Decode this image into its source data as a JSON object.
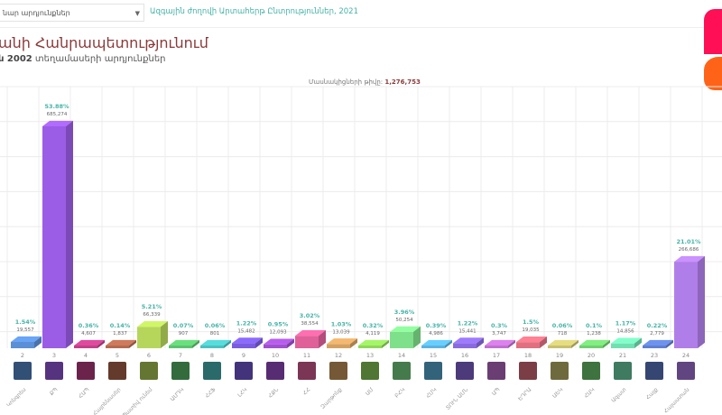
{
  "header": {
    "select_value": "նար արդյունքներ",
    "election_link": "Ազգային ժողովի Արտահերթ Ընտրություններ, 2021"
  },
  "title": "անի Հանրապետությունում",
  "subtitle_bold": "ն 2002",
  "subtitle_rest": " տեղամասերի արդյունքներ",
  "participants_label": "Մասնակիցների թիվը:",
  "participants_value": "1,276,753",
  "chart_data": {
    "type": "bar",
    "ylabel": "",
    "xlabel": "",
    "ylim": [
      0,
      60
    ],
    "grid": true,
    "categories": [
      "2",
      "3",
      "4",
      "5",
      "6",
      "7",
      "8",
      "9",
      "10",
      "11",
      "12",
      "13",
      "14",
      "15",
      "16",
      "17",
      "18",
      "19",
      "20",
      "21",
      "23",
      "24"
    ],
    "party_names": [
      "Կոնգրես",
      "ՔՊ",
      "ՀԱՊ",
      "Հայրենասեր",
      "Պատիվ ունեմ",
      "ԱՄԴԿ",
      "ՀՀՖ",
      "ԼՀԿ",
      "ՀՔՆ",
      "ՀՀ",
      "Զարթոնք",
      "ԱՄ",
      "ԲՀԿ",
      "ՀՄԿ",
      "ՏՈՒՆ ԱՄՆ",
      "ԱՊ",
      "ԵԴՐԱ",
      "ԱԵԿ",
      "ՀԱԿ",
      "Ազատ",
      "Հայք",
      "Հայաստան"
    ],
    "percent_labels": [
      "1.54%",
      "53.88%",
      "0.36%",
      "0.14%",
      "5.21%",
      "0.07%",
      "0.06%",
      "1.22%",
      "0.95%",
      "3.02%",
      "1.03%",
      "0.32%",
      "3.96%",
      "0.39%",
      "1.22%",
      "0.3%",
      "1.5%",
      "0.06%",
      "0.1%",
      "1.17%",
      "0.22%",
      "21.01%"
    ],
    "values": [
      1.54,
      53.88,
      0.36,
      0.14,
      5.21,
      0.07,
      0.06,
      1.22,
      0.95,
      3.02,
      1.03,
      0.32,
      3.96,
      0.39,
      1.22,
      0.3,
      1.5,
      0.06,
      0.1,
      1.17,
      0.22,
      21.01
    ],
    "votes": [
      "19,557",
      "685,274",
      "4,607",
      "1,837",
      "66,339",
      "907",
      "801",
      "15,482",
      "12,093",
      "38,554",
      "13,039",
      "4,119",
      "50,254",
      "4,986",
      "15,441",
      "3,747",
      "19,035",
      "718",
      "1,238",
      "14,856",
      "2,779",
      "266,686"
    ],
    "colors": [
      "#5b8fd6",
      "#9b5de5",
      "#c2408a",
      "#b46a50",
      "#b5d65a",
      "#5cc26e",
      "#4cc0c0",
      "#7a5ce0",
      "#a050d0",
      "#e0609a",
      "#d4a060",
      "#8fd65a",
      "#7ee08a",
      "#5ab4e0",
      "#8a6ae0",
      "#c070d0",
      "#e07080",
      "#c8c070",
      "#70d070",
      "#70e0b0",
      "#6080d0",
      "#b07ee8"
    ],
    "label_color": "#45b3a8"
  }
}
